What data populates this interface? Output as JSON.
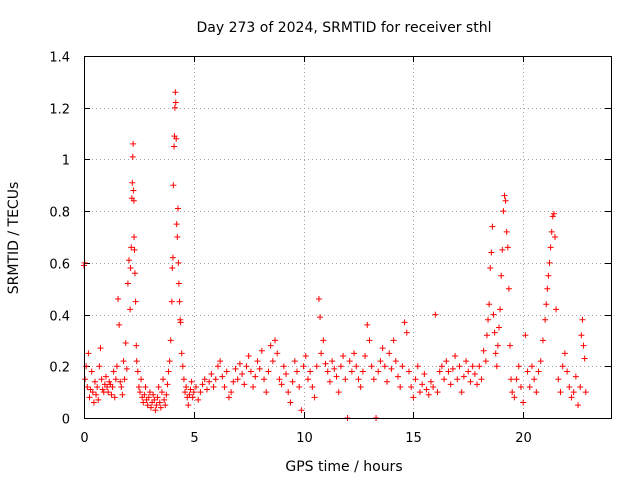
{
  "chart_data": {
    "type": "scatter",
    "title": "Day 273 of 2024, SRMTID for receiver sthl",
    "xlabel": "GPS time / hours",
    "ylabel": "SRMTID / TECUs",
    "xlim": [
      0,
      24
    ],
    "ylim": [
      0,
      1.4
    ],
    "xticks": [
      0,
      5,
      10,
      15,
      20
    ],
    "xtick_labels": [
      "0",
      "5",
      "10",
      "15",
      "20"
    ],
    "yticks": [
      0,
      0.2,
      0.4,
      0.6,
      0.8,
      1.0,
      1.2,
      1.4
    ],
    "ytick_labels": [
      "0",
      "0.2",
      "0.4",
      "0.6",
      "0.8",
      "1",
      "1.2",
      "1.4"
    ],
    "grid": true,
    "marker": "+",
    "color": "#ff0000",
    "series": [
      {
        "name": "SRMTID",
        "points": [
          [
            0.0,
            0.59
          ],
          [
            0.03,
            0.6
          ],
          [
            0.05,
            0.15
          ],
          [
            0.1,
            0.2
          ],
          [
            0.15,
            0.12
          ],
          [
            0.2,
            0.25
          ],
          [
            0.25,
            0.08
          ],
          [
            0.3,
            0.11
          ],
          [
            0.35,
            0.18
          ],
          [
            0.4,
            0.1
          ],
          [
            0.45,
            0.06
          ],
          [
            0.5,
            0.14
          ],
          [
            0.55,
            0.09
          ],
          [
            0.6,
            0.12
          ],
          [
            0.65,
            0.07
          ],
          [
            0.7,
            0.2
          ],
          [
            0.75,
            0.27
          ],
          [
            0.8,
            0.15
          ],
          [
            0.85,
            0.11
          ],
          [
            0.9,
            0.1
          ],
          [
            0.95,
            0.13
          ],
          [
            1.0,
            0.16
          ],
          [
            1.05,
            0.12
          ],
          [
            1.1,
            0.1
          ],
          [
            1.15,
            0.14
          ],
          [
            1.2,
            0.13
          ],
          [
            1.25,
            0.09
          ],
          [
            1.3,
            0.12
          ],
          [
            1.35,
            0.18
          ],
          [
            1.4,
            0.08
          ],
          [
            1.45,
            0.15
          ],
          [
            1.5,
            0.2
          ],
          [
            1.55,
            0.46
          ],
          [
            1.6,
            0.36
          ],
          [
            1.65,
            0.14
          ],
          [
            1.7,
            0.12
          ],
          [
            1.75,
            0.09
          ],
          [
            1.8,
            0.22
          ],
          [
            1.85,
            0.15
          ],
          [
            1.9,
            0.29
          ],
          [
            1.95,
            0.19
          ],
          [
            2.0,
            0.52
          ],
          [
            2.05,
            0.61
          ],
          [
            2.1,
            0.42
          ],
          [
            2.12,
            0.58
          ],
          [
            2.15,
            0.66
          ],
          [
            2.18,
            0.85
          ],
          [
            2.2,
            0.91
          ],
          [
            2.22,
            1.01
          ],
          [
            2.24,
            1.06
          ],
          [
            2.25,
            0.88
          ],
          [
            2.27,
            0.84
          ],
          [
            2.28,
            0.7
          ],
          [
            2.3,
            0.65
          ],
          [
            2.32,
            0.56
          ],
          [
            2.35,
            0.45
          ],
          [
            2.38,
            0.28
          ],
          [
            2.4,
            0.22
          ],
          [
            2.45,
            0.18
          ],
          [
            2.5,
            0.12
          ],
          [
            2.55,
            0.1
          ],
          [
            2.6,
            0.15
          ],
          [
            2.65,
            0.08
          ],
          [
            2.7,
            0.06
          ],
          [
            2.75,
            0.09
          ],
          [
            2.8,
            0.12
          ],
          [
            2.85,
            0.07
          ],
          [
            2.9,
            0.05
          ],
          [
            2.95,
            0.08
          ],
          [
            3.0,
            0.1
          ],
          [
            3.05,
            0.04
          ],
          [
            3.1,
            0.06
          ],
          [
            3.15,
            0.09
          ],
          [
            3.2,
            0.07
          ],
          [
            3.25,
            0.03
          ],
          [
            3.3,
            0.05
          ],
          [
            3.35,
            0.08
          ],
          [
            3.4,
            0.12
          ],
          [
            3.45,
            0.06
          ],
          [
            3.5,
            0.04
          ],
          [
            3.55,
            0.1
          ],
          [
            3.6,
            0.15
          ],
          [
            3.65,
            0.07
          ],
          [
            3.7,
            0.05
          ],
          [
            3.75,
            0.09
          ],
          [
            3.8,
            0.13
          ],
          [
            3.85,
            0.18
          ],
          [
            3.9,
            0.22
          ],
          [
            3.95,
            0.3
          ],
          [
            4.0,
            0.45
          ],
          [
            4.02,
            0.58
          ],
          [
            4.05,
            0.62
          ],
          [
            4.07,
            0.9
          ],
          [
            4.1,
            1.05
          ],
          [
            4.12,
            1.09
          ],
          [
            4.14,
            1.2
          ],
          [
            4.16,
            1.26
          ],
          [
            4.18,
            1.22
          ],
          [
            4.2,
            1.08
          ],
          [
            4.22,
            0.75
          ],
          [
            4.25,
            0.7
          ],
          [
            4.28,
            0.81
          ],
          [
            4.3,
            0.6
          ],
          [
            4.32,
            0.52
          ],
          [
            4.35,
            0.45
          ],
          [
            4.38,
            0.38
          ],
          [
            4.4,
            0.37
          ],
          [
            4.45,
            0.25
          ],
          [
            4.5,
            0.2
          ],
          [
            4.55,
            0.15
          ],
          [
            4.6,
            0.1
          ],
          [
            4.65,
            0.12
          ],
          [
            4.7,
            0.08
          ],
          [
            4.75,
            0.05
          ],
          [
            4.8,
            0.09
          ],
          [
            4.85,
            0.11
          ],
          [
            4.9,
            0.14
          ],
          [
            4.95,
            0.08
          ],
          [
            5.0,
            0.1
          ],
          [
            5.1,
            0.12
          ],
          [
            5.2,
            0.07
          ],
          [
            5.3,
            0.1
          ],
          [
            5.4,
            0.13
          ],
          [
            5.5,
            0.15
          ],
          [
            5.6,
            0.11
          ],
          [
            5.7,
            0.14
          ],
          [
            5.8,
            0.17
          ],
          [
            5.9,
            0.12
          ],
          [
            6.0,
            0.15
          ],
          [
            6.1,
            0.2
          ],
          [
            6.2,
            0.22
          ],
          [
            6.3,
            0.16
          ],
          [
            6.4,
            0.12
          ],
          [
            6.5,
            0.18
          ],
          [
            6.6,
            0.08
          ],
          [
            6.7,
            0.1
          ],
          [
            6.8,
            0.14
          ],
          [
            6.9,
            0.19
          ],
          [
            7.0,
            0.15
          ],
          [
            7.1,
            0.21
          ],
          [
            7.2,
            0.17
          ],
          [
            7.3,
            0.13
          ],
          [
            7.4,
            0.2
          ],
          [
            7.5,
            0.24
          ],
          [
            7.6,
            0.18
          ],
          [
            7.7,
            0.12
          ],
          [
            7.8,
            0.16
          ],
          [
            7.9,
            0.22
          ],
          [
            8.0,
            0.19
          ],
          [
            8.1,
            0.26
          ],
          [
            8.2,
            0.15
          ],
          [
            8.3,
            0.1
          ],
          [
            8.4,
            0.18
          ],
          [
            8.5,
            0.28
          ],
          [
            8.6,
            0.22
          ],
          [
            8.7,
            0.3
          ],
          [
            8.8,
            0.25
          ],
          [
            8.9,
            0.15
          ],
          [
            9.0,
            0.13
          ],
          [
            9.1,
            0.2
          ],
          [
            9.2,
            0.17
          ],
          [
            9.3,
            0.1
          ],
          [
            9.4,
            0.06
          ],
          [
            9.5,
            0.14
          ],
          [
            9.6,
            0.22
          ],
          [
            9.7,
            0.18
          ],
          [
            9.8,
            0.12
          ],
          [
            9.9,
            0.03
          ],
          [
            10.0,
            0.2
          ],
          [
            10.1,
            0.24
          ],
          [
            10.2,
            0.15
          ],
          [
            10.3,
            0.18
          ],
          [
            10.4,
            0.12
          ],
          [
            10.5,
            0.08
          ],
          [
            10.6,
            0.2
          ],
          [
            10.7,
            0.46
          ],
          [
            10.75,
            0.39
          ],
          [
            10.8,
            0.25
          ],
          [
            10.9,
            0.3
          ],
          [
            11.0,
            0.21
          ],
          [
            11.1,
            0.18
          ],
          [
            11.2,
            0.14
          ],
          [
            11.3,
            0.22
          ],
          [
            11.4,
            0.19
          ],
          [
            11.5,
            0.16
          ],
          [
            11.6,
            0.1
          ],
          [
            11.7,
            0.2
          ],
          [
            11.8,
            0.24
          ],
          [
            11.9,
            0.15
          ],
          [
            12.0,
            0.0
          ],
          [
            12.1,
            0.22
          ],
          [
            12.2,
            0.18
          ],
          [
            12.3,
            0.25
          ],
          [
            12.4,
            0.2
          ],
          [
            12.5,
            0.15
          ],
          [
            12.6,
            0.12
          ],
          [
            12.7,
            0.18
          ],
          [
            12.8,
            0.24
          ],
          [
            12.9,
            0.36
          ],
          [
            13.0,
            0.3
          ],
          [
            13.1,
            0.2
          ],
          [
            13.2,
            0.15
          ],
          [
            13.3,
            0.0
          ],
          [
            13.4,
            0.18
          ],
          [
            13.5,
            0.22
          ],
          [
            13.6,
            0.27
          ],
          [
            13.7,
            0.2
          ],
          [
            13.8,
            0.14
          ],
          [
            13.9,
            0.25
          ],
          [
            14.0,
            0.19
          ],
          [
            14.1,
            0.3
          ],
          [
            14.2,
            0.22
          ],
          [
            14.3,
            0.16
          ],
          [
            14.4,
            0.12
          ],
          [
            14.5,
            0.2
          ],
          [
            14.6,
            0.37
          ],
          [
            14.7,
            0.33
          ],
          [
            14.8,
            0.18
          ],
          [
            14.9,
            0.12
          ],
          [
            15.0,
            0.08
          ],
          [
            15.1,
            0.15
          ],
          [
            15.2,
            0.2
          ],
          [
            15.3,
            0.1
          ],
          [
            15.4,
            0.13
          ],
          [
            15.5,
            0.17
          ],
          [
            15.6,
            0.11
          ],
          [
            15.7,
            0.09
          ],
          [
            15.8,
            0.14
          ],
          [
            15.9,
            0.12
          ],
          [
            16.0,
            0.4
          ],
          [
            16.1,
            0.1
          ],
          [
            16.2,
            0.18
          ],
          [
            16.3,
            0.2
          ],
          [
            16.4,
            0.15
          ],
          [
            16.5,
            0.22
          ],
          [
            16.6,
            0.18
          ],
          [
            16.7,
            0.13
          ],
          [
            16.8,
            0.19
          ],
          [
            16.9,
            0.24
          ],
          [
            17.0,
            0.15
          ],
          [
            17.1,
            0.2
          ],
          [
            17.2,
            0.1
          ],
          [
            17.3,
            0.16
          ],
          [
            17.4,
            0.22
          ],
          [
            17.5,
            0.18
          ],
          [
            17.6,
            0.14
          ],
          [
            17.7,
            0.2
          ],
          [
            17.8,
            0.17
          ],
          [
            17.9,
            0.13
          ],
          [
            18.0,
            0.2
          ],
          [
            18.1,
            0.15
          ],
          [
            18.2,
            0.26
          ],
          [
            18.3,
            0.22
          ],
          [
            18.35,
            0.32
          ],
          [
            18.4,
            0.38
          ],
          [
            18.45,
            0.44
          ],
          [
            18.5,
            0.58
          ],
          [
            18.55,
            0.64
          ],
          [
            18.6,
            0.74
          ],
          [
            18.65,
            0.4
          ],
          [
            18.7,
            0.33
          ],
          [
            18.75,
            0.25
          ],
          [
            18.8,
            0.2
          ],
          [
            18.85,
            0.28
          ],
          [
            18.9,
            0.35
          ],
          [
            18.95,
            0.42
          ],
          [
            19.0,
            0.55
          ],
          [
            19.05,
            0.65
          ],
          [
            19.1,
            0.8
          ],
          [
            19.15,
            0.86
          ],
          [
            19.2,
            0.84
          ],
          [
            19.25,
            0.72
          ],
          [
            19.3,
            0.66
          ],
          [
            19.35,
            0.5
          ],
          [
            19.4,
            0.28
          ],
          [
            19.45,
            0.15
          ],
          [
            19.5,
            0.1
          ],
          [
            19.6,
            0.08
          ],
          [
            19.7,
            0.15
          ],
          [
            19.8,
            0.2
          ],
          [
            19.9,
            0.12
          ],
          [
            20.0,
            0.06
          ],
          [
            20.1,
            0.32
          ],
          [
            20.2,
            0.18
          ],
          [
            20.3,
            0.12
          ],
          [
            20.4,
            0.2
          ],
          [
            20.5,
            0.15
          ],
          [
            20.6,
            0.1
          ],
          [
            20.7,
            0.18
          ],
          [
            20.8,
            0.22
          ],
          [
            20.9,
            0.3
          ],
          [
            21.0,
            0.38
          ],
          [
            21.05,
            0.44
          ],
          [
            21.1,
            0.5
          ],
          [
            21.15,
            0.55
          ],
          [
            21.2,
            0.6
          ],
          [
            21.25,
            0.66
          ],
          [
            21.3,
            0.72
          ],
          [
            21.35,
            0.78
          ],
          [
            21.4,
            0.79
          ],
          [
            21.45,
            0.7
          ],
          [
            21.5,
            0.42
          ],
          [
            21.6,
            0.15
          ],
          [
            21.7,
            0.1
          ],
          [
            21.8,
            0.2
          ],
          [
            21.9,
            0.25
          ],
          [
            22.0,
            0.18
          ],
          [
            22.1,
            0.12
          ],
          [
            22.2,
            0.08
          ],
          [
            22.3,
            0.1
          ],
          [
            22.4,
            0.16
          ],
          [
            22.5,
            0.05
          ],
          [
            22.6,
            0.12
          ],
          [
            22.65,
            0.32
          ],
          [
            22.7,
            0.38
          ],
          [
            22.75,
            0.28
          ],
          [
            22.8,
            0.23
          ],
          [
            22.85,
            0.1
          ]
        ]
      }
    ]
  }
}
